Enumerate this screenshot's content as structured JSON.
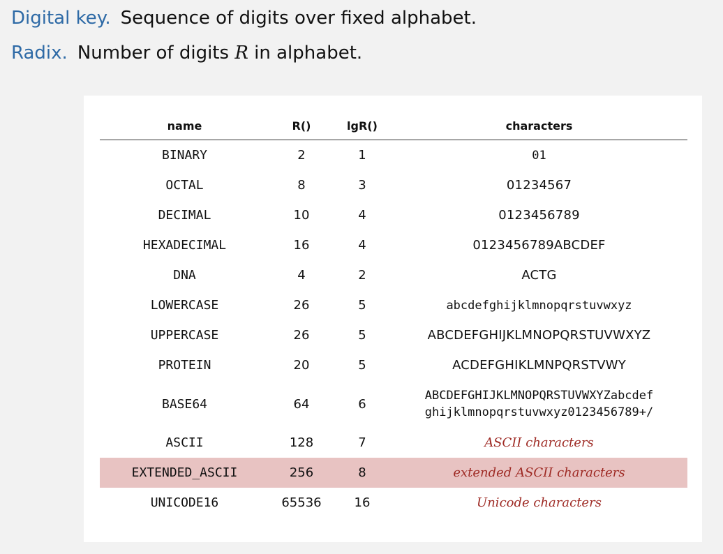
{
  "definitions": [
    {
      "term": "Digital key.",
      "text": "Sequence of digits over fixed alphabet."
    },
    {
      "term": "Radix.",
      "text_before": "Number of digits",
      "math": "R",
      "text_after": "in alphabet."
    }
  ],
  "table": {
    "headers": [
      "name",
      "R()",
      "lgR()",
      "characters"
    ],
    "rows": [
      {
        "name": "BINARY",
        "r": "2",
        "lg": "1",
        "chars": "01"
      },
      {
        "name": "OCTAL",
        "r": "8",
        "lg": "3",
        "chars": "01234567"
      },
      {
        "name": "DECIMAL",
        "r": "10",
        "lg": "4",
        "chars": "0123456789"
      },
      {
        "name": "HEXADECIMAL",
        "r": "16",
        "lg": "4",
        "chars": "0123456789ABCDEF"
      },
      {
        "name": "DNA",
        "r": "4",
        "lg": "2",
        "chars": "ACTG"
      },
      {
        "name": "LOWERCASE",
        "r": "26",
        "lg": "5",
        "chars": "abcdefghijklmnopqrstuvwxyz"
      },
      {
        "name": "UPPERCASE",
        "r": "26",
        "lg": "5",
        "chars": "ABCDEFGHIJKLMNOPQRSTUVWXYZ"
      },
      {
        "name": "PROTEIN",
        "r": "20",
        "lg": "5",
        "chars": "ACDEFGHIKLMNPQRSTVWY"
      },
      {
        "name": "BASE64",
        "r": "64",
        "lg": "6",
        "chars_line1": "ABCDEFGHIJKLMNOPQRSTUVWXYZabcdef",
        "chars_line2": "ghijklmnopqrstuvwxyz0123456789+/"
      },
      {
        "name": "ASCII",
        "r": "128",
        "lg": "7",
        "chars": "ASCII characters"
      },
      {
        "name": "EXTENDED_ASCII",
        "r": "256",
        "lg": "8",
        "chars": "extended ASCII characters"
      },
      {
        "name": "UNICODE16",
        "r": "65536",
        "lg": "16",
        "chars": "Unicode characters"
      }
    ],
    "highlight_color": "#e8c3c2",
    "note_color": "#9e2a24",
    "term_color": "#2e6aa6"
  }
}
